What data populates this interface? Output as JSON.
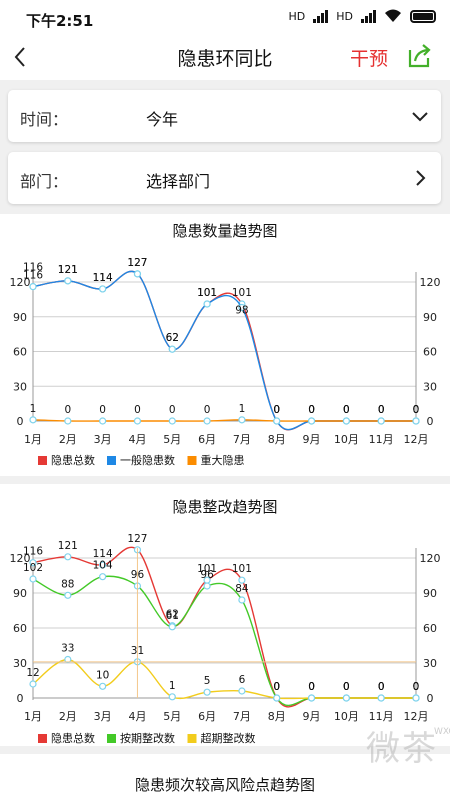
{
  "status": {
    "time": "下午2:51",
    "network1": "HD",
    "network2": "HD"
  },
  "header": {
    "title": "隐患环同比",
    "intervene_label": "干预"
  },
  "filters": {
    "time": {
      "label": "时间：",
      "value": "今年"
    },
    "dept": {
      "label": "部门：",
      "value": "选择部门"
    }
  },
  "charts": {
    "chart1": {
      "title": "隐患数量趋势图"
    },
    "chart2": {
      "title": "隐患整改趋势图"
    },
    "chart3": {
      "title": "隐患频次较高风险点趋势图"
    }
  },
  "watermark": {
    "text": "微茶",
    "sub": "WXCHA"
  },
  "chart_data": [
    {
      "type": "line",
      "title": "隐患数量趋势图",
      "categories": [
        "1月",
        "2月",
        "3月",
        "4月",
        "5月",
        "6月",
        "7月",
        "8月",
        "9月",
        "10月",
        "11月",
        "12月"
      ],
      "ylim": [
        0,
        120
      ],
      "yticks": [
        0,
        30,
        60,
        90,
        120
      ],
      "grid": true,
      "legend_position": "bottom-left",
      "series": [
        {
          "name": "隐患总数",
          "color": "#e53935",
          "values": [
            116,
            121,
            114,
            127,
            62,
            101,
            101,
            0,
            0,
            0,
            0,
            0
          ]
        },
        {
          "name": "一般隐患数",
          "color": "#1e88e5",
          "values": [
            116,
            121,
            114,
            127,
            62,
            101,
            98,
            0,
            0,
            0,
            0,
            0
          ]
        },
        {
          "name": "重大隐患",
          "color": "#fb8c00",
          "values": [
            1,
            0,
            0,
            0,
            0,
            0,
            1,
            0,
            0,
            0,
            0,
            0
          ]
        }
      ]
    },
    {
      "type": "line",
      "title": "隐患整改趋势图",
      "categories": [
        "1月",
        "2月",
        "3月",
        "4月",
        "5月",
        "6月",
        "7月",
        "8月",
        "9月",
        "10月",
        "11月",
        "12月"
      ],
      "ylim": [
        0,
        120
      ],
      "yticks": [
        0,
        30,
        60,
        90,
        120
      ],
      "grid": true,
      "legend_position": "bottom-left",
      "series": [
        {
          "name": "隐患总数",
          "color": "#e53935",
          "values": [
            116,
            121,
            114,
            127,
            62,
            101,
            101,
            0,
            0,
            0,
            0,
            0
          ]
        },
        {
          "name": "按期整改数",
          "color": "#43c928",
          "values": [
            102,
            88,
            104,
            96,
            61,
            96,
            84,
            0,
            0,
            0,
            0,
            0
          ]
        },
        {
          "name": "超期整改数",
          "color": "#f2cc1c",
          "values": [
            12,
            33,
            10,
            31,
            1,
            5,
            6,
            0,
            0,
            0,
            0,
            0
          ]
        }
      ]
    }
  ]
}
